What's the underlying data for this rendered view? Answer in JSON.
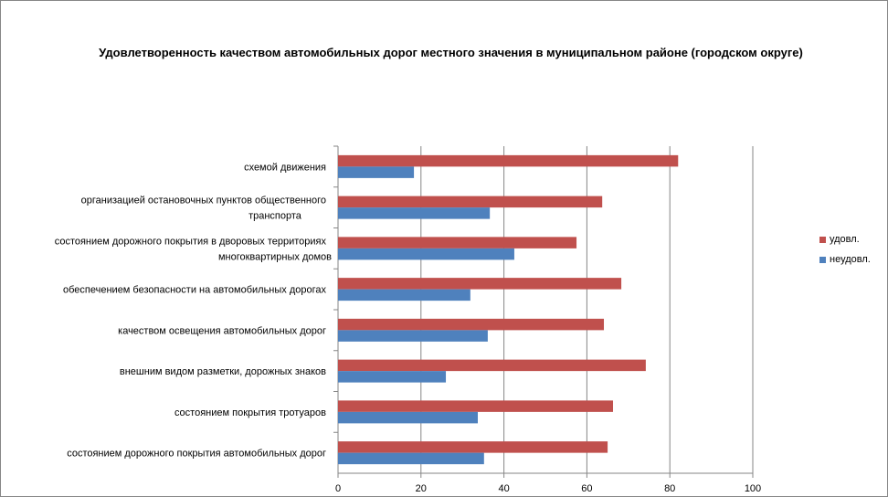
{
  "chart_data": {
    "type": "bar",
    "orientation": "horizontal",
    "title": "Удовлетворенность качеством автомобильных дорог местного значения в муниципальном районе (городском округе)",
    "categories": [
      [
        "схемой движения"
      ],
      [
        "организацией остановочных пунктов общественного",
        "транспорта"
      ],
      [
        "состоянием дорожного покрытия в дворовых территориях",
        "многоквартирных домов"
      ],
      [
        "обеспечением  безопасности на автомобильных дорогах"
      ],
      [
        "качеством освещения  автомобильных дорог"
      ],
      [
        "внешним  видом разметки, дорожных знаков"
      ],
      [
        "состоянием  покрытия тротуаров"
      ],
      [
        "состоянием дорожного покрытия автомобильных дорог"
      ]
    ],
    "series": [
      {
        "name": "удовл.",
        "color": "#c0504d",
        "values": [
          82,
          63.7,
          57.5,
          68.3,
          64.1,
          74.2,
          66.3,
          65
        ]
      },
      {
        "name": "неудовл.",
        "color": "#4f81bd",
        "values": [
          18.3,
          36.6,
          42.5,
          31.9,
          36.1,
          26,
          33.7,
          35.2
        ]
      }
    ],
    "xlim": [
      0,
      100
    ],
    "xticks": [
      "0",
      "20",
      "40",
      "60",
      "80",
      "100"
    ],
    "grid": true,
    "legend": "right"
  }
}
